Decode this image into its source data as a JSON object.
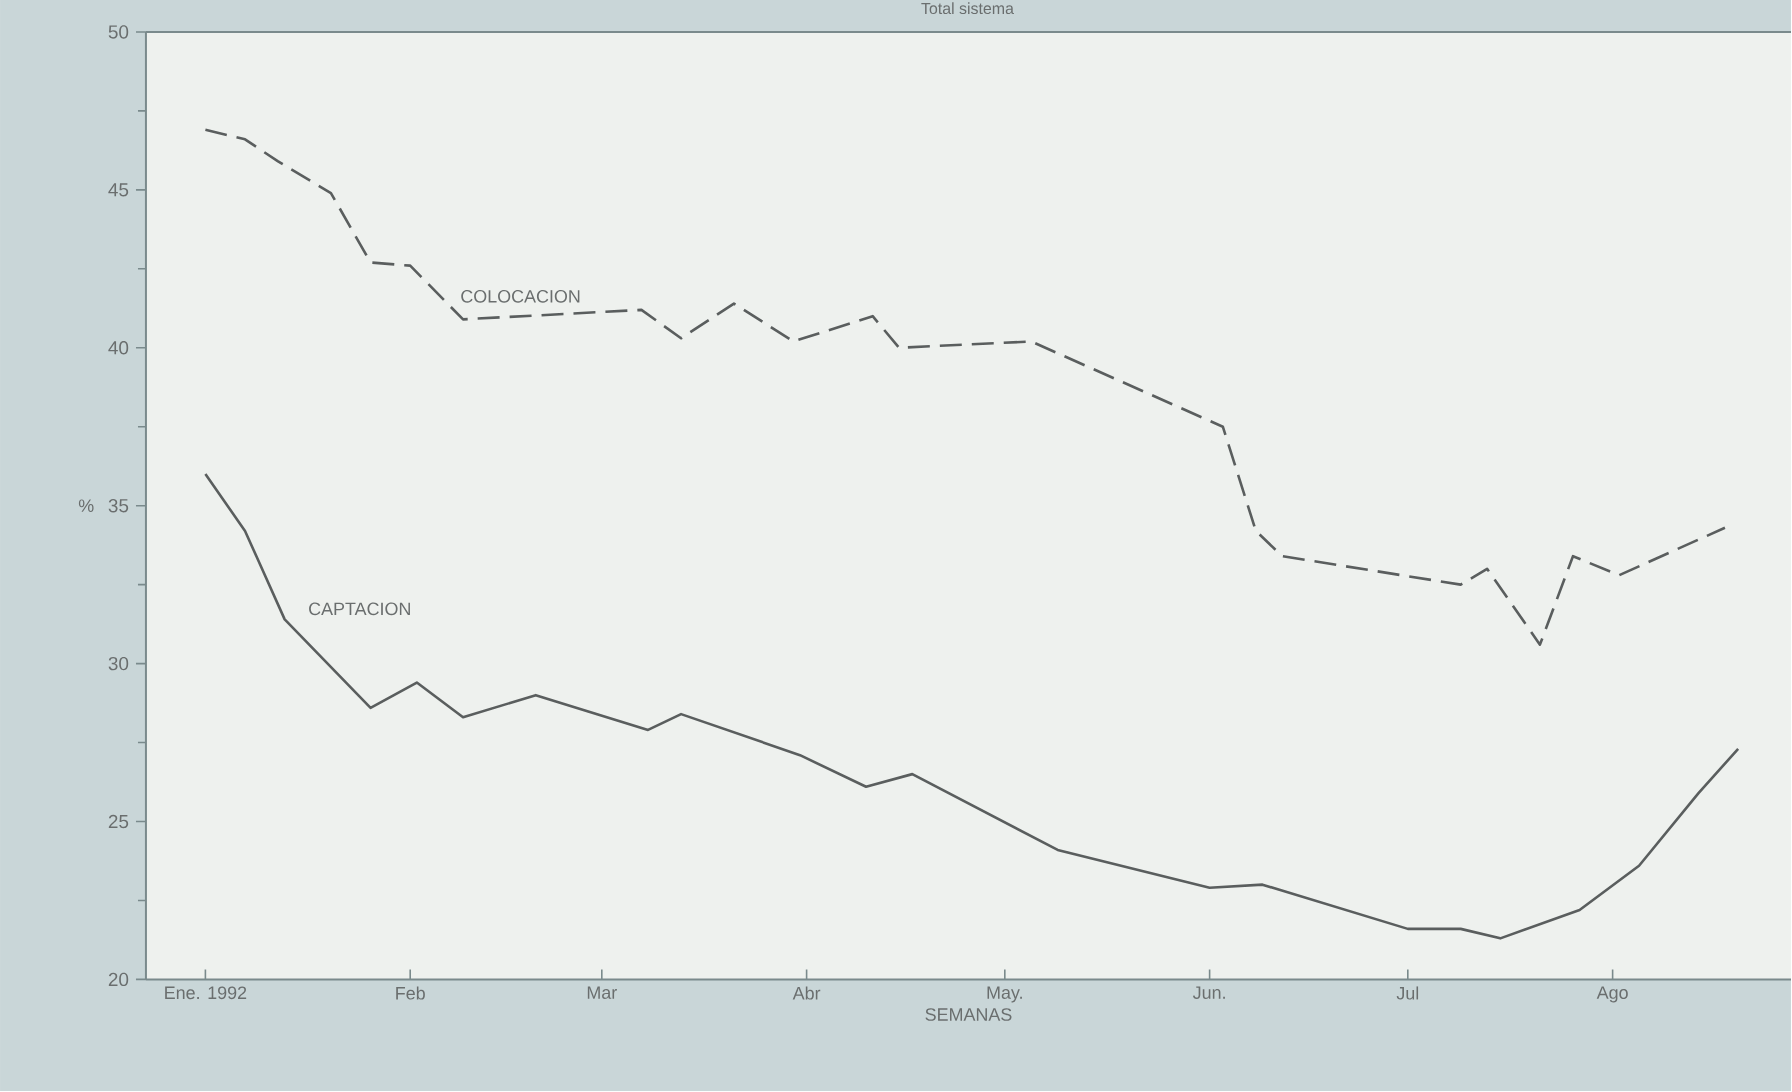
{
  "chart_data": {
    "type": "line",
    "title": "Total sistema",
    "xlabel": "SEMANAS",
    "ylabel": "%",
    "xlim": [
      "1991-12-23",
      "1992-08-28"
    ],
    "ylim": [
      20,
      50
    ],
    "yticks": [
      20,
      25,
      30,
      35,
      40,
      45,
      50
    ],
    "xticks": [
      {
        "value": "1992-01-01",
        "label": "Ene. 1992"
      },
      {
        "value": "1992-02-01",
        "label": "Feb"
      },
      {
        "value": "1992-03-01",
        "label": "Mar"
      },
      {
        "value": "1992-04-01",
        "label": "Abr"
      },
      {
        "value": "1992-05-01",
        "label": "May."
      },
      {
        "value": "1992-06-01",
        "label": "Jun."
      },
      {
        "value": "1992-07-01",
        "label": "Jul"
      },
      {
        "value": "1992-08-01",
        "label": "Ago"
      }
    ],
    "grid": false,
    "legend": false,
    "marker": "none",
    "series": [
      {
        "name": "COLOCACION",
        "color": "#5a5e5e",
        "line_style": "dashed",
        "x": [
          "1992-01-01",
          "1992-01-07",
          "1992-01-12",
          "1992-01-20",
          "1992-01-26",
          "1992-02-01",
          "1992-02-09",
          "1992-03-07",
          "1992-03-13",
          "1992-03-21",
          "1992-03-30",
          "1992-04-11",
          "1992-04-15",
          "1992-05-05",
          "1992-06-03",
          "1992-06-08",
          "1992-06-12",
          "1992-07-09",
          "1992-07-13",
          "1992-07-21",
          "1992-07-26",
          "1992-08-02",
          "1992-08-18"
        ],
        "values": [
          46.9,
          46.6,
          45.9,
          44.9,
          42.7,
          42.6,
          40.9,
          41.2,
          40.3,
          41.4,
          40.2,
          41.0,
          40.0,
          40.2,
          37.5,
          34.2,
          33.4,
          32.5,
          33.0,
          30.6,
          33.4,
          32.8,
          34.3
        ]
      },
      {
        "name": "CAPTACION",
        "color": "#5a5e5e",
        "line_style": "solid",
        "x": [
          "1992-01-01",
          "1992-01-07",
          "1992-01-13",
          "1992-01-26",
          "1992-02-02",
          "1992-02-09",
          "1992-02-20",
          "1992-03-08",
          "1992-03-13",
          "1992-03-31",
          "1992-04-10",
          "1992-04-17",
          "1992-05-09",
          "1992-06-01",
          "1992-06-09",
          "1992-07-01",
          "1992-07-09",
          "1992-07-15",
          "1992-07-27",
          "1992-08-05",
          "1992-08-14",
          "1992-08-20"
        ],
        "values": [
          36.0,
          34.2,
          31.4,
          28.6,
          29.4,
          28.3,
          29.0,
          27.9,
          28.4,
          27.1,
          26.1,
          26.5,
          24.1,
          22.9,
          23.0,
          21.6,
          21.6,
          21.3,
          22.2,
          23.6,
          25.9,
          27.3
        ]
      }
    ]
  }
}
